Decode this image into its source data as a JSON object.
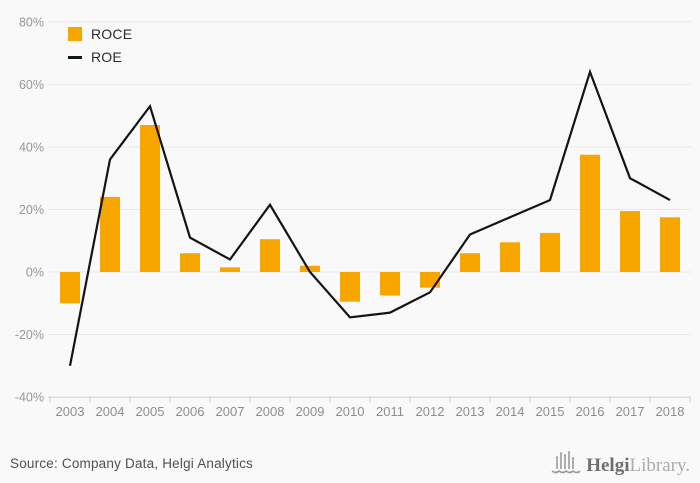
{
  "chart_data": {
    "type": "bar",
    "categories": [
      "2003",
      "2004",
      "2005",
      "2006",
      "2007",
      "2008",
      "2009",
      "2010",
      "2011",
      "2012",
      "2013",
      "2014",
      "2015",
      "2016",
      "2017",
      "2018"
    ],
    "series": [
      {
        "name": "ROCE",
        "type": "bar",
        "color": "#F7A600",
        "values": [
          -10,
          24,
          47,
          6,
          1.5,
          10.5,
          2,
          -9.5,
          -7.5,
          -5,
          6,
          9.5,
          12.5,
          37.5,
          19.5,
          17.5
        ]
      },
      {
        "name": "ROE",
        "type": "line",
        "color": "#141414",
        "values": [
          -30,
          36,
          53,
          11,
          4,
          21.5,
          0,
          -14.5,
          -13,
          -6.5,
          12,
          17.5,
          23,
          64,
          30,
          23
        ]
      }
    ],
    "title": "",
    "xlabel": "",
    "ylabel": "",
    "ylim": [
      -40,
      80
    ],
    "yticks": [
      {
        "value": 80,
        "label": "80%"
      },
      {
        "value": 60,
        "label": "60%"
      },
      {
        "value": 40,
        "label": "40%"
      },
      {
        "value": 20,
        "label": "20%"
      },
      {
        "value": 0,
        "label": "0%"
      },
      {
        "value": -20,
        "label": "-20%"
      },
      {
        "value": -40,
        "label": "-40%"
      }
    ],
    "grid": true,
    "legend_position": "top-left"
  },
  "legend": {
    "roce_label": "ROCE",
    "roe_label": "ROE"
  },
  "footer": {
    "source_text": "Source: Company Data, Helgi Analytics",
    "logo_helgi": "Helgi",
    "logo_library": "Library."
  },
  "colors": {
    "background": "#f9f9f9",
    "bar": "#F7A600",
    "line": "#141414",
    "gridline": "#e9e9e9",
    "axis": "#c9cfe3",
    "tick_label": "#979797",
    "source_text": "#4f4f4f",
    "logo_gray": "#9b9b9b"
  }
}
